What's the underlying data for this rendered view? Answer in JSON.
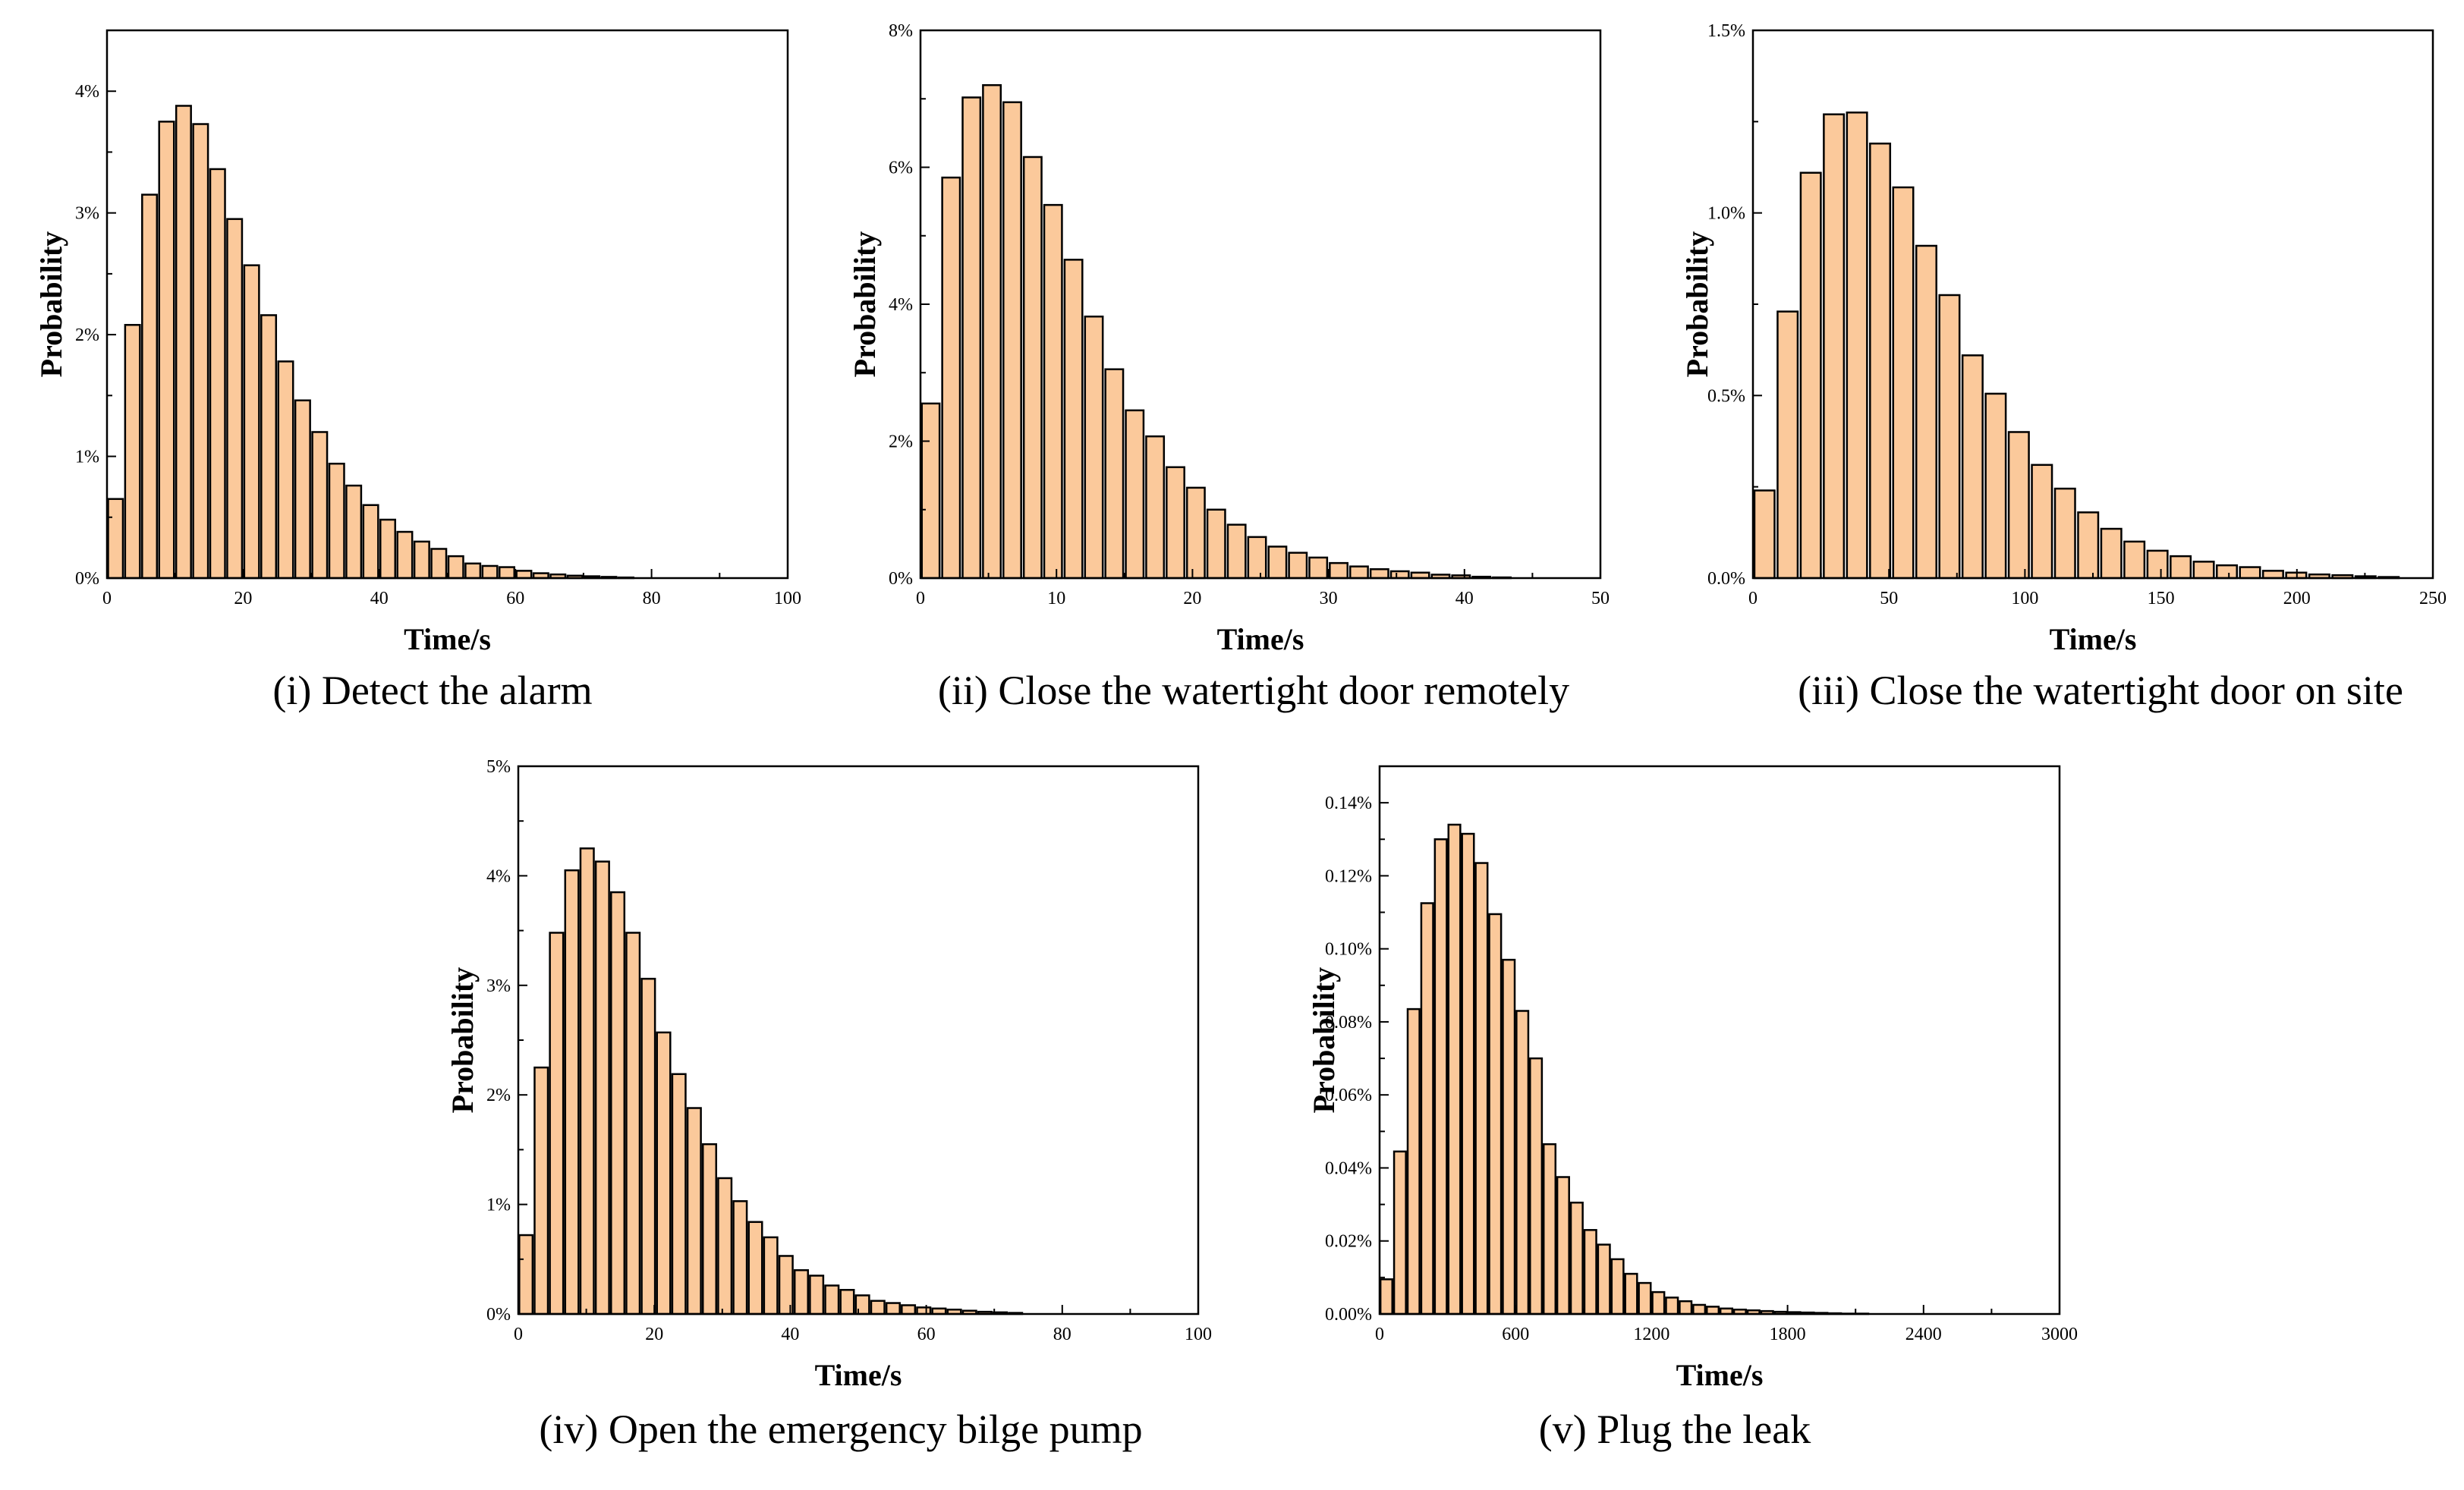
{
  "theme": {
    "bar_fill": "#fbc99b",
    "bar_stroke": "#000000"
  },
  "chart_data": [
    {
      "type": "bar",
      "caption": "(i) Detect the alarm",
      "xlabel": "Time/s",
      "ylabel": "Probability",
      "xlim": [
        0,
        100
      ],
      "ylim": [
        0,
        4.5
      ],
      "xticks": [
        0,
        20,
        40,
        60,
        80,
        100
      ],
      "xtick_labels": [
        "0",
        "20",
        "40",
        "60",
        "80",
        "100"
      ],
      "yticks": [
        0,
        1,
        2,
        3,
        4
      ],
      "ytick_labels": [
        "0%",
        "1%",
        "2%",
        "3%",
        "4%"
      ],
      "bin_width": 2.5,
      "x": [
        0,
        2.5,
        5,
        7.5,
        10,
        12.5,
        15,
        17.5,
        20,
        22.5,
        25,
        27.5,
        30,
        32.5,
        35,
        37.5,
        40,
        42.5,
        45,
        47.5,
        50,
        52.5,
        55,
        57.5,
        60,
        62.5,
        65,
        67.5,
        70,
        72.5,
        75
      ],
      "values": [
        0.65,
        2.08,
        3.15,
        3.75,
        3.88,
        3.73,
        3.36,
        2.95,
        2.57,
        2.16,
        1.78,
        1.46,
        1.2,
        0.94,
        0.76,
        0.6,
        0.48,
        0.38,
        0.3,
        0.24,
        0.18,
        0.12,
        0.1,
        0.09,
        0.06,
        0.04,
        0.03,
        0.02,
        0.015,
        0.01,
        0.005
      ]
    },
    {
      "type": "bar",
      "caption": "(ii) Close the watertight door remotely",
      "xlabel": "Time/s",
      "ylabel": "Probability",
      "xlim": [
        0,
        50
      ],
      "ylim": [
        0,
        8
      ],
      "xticks": [
        0,
        10,
        20,
        30,
        40,
        50
      ],
      "xtick_labels": [
        "0",
        "10",
        "20",
        "30",
        "40",
        "50"
      ],
      "yticks": [
        0,
        2,
        4,
        6,
        8
      ],
      "ytick_labels": [
        "0%",
        "2%",
        "4%",
        "6%",
        "8%"
      ],
      "bin_width": 1.5,
      "x": [
        0,
        1.5,
        3,
        4.5,
        6,
        7.5,
        9,
        10.5,
        12,
        13.5,
        15,
        16.5,
        18,
        19.5,
        21,
        22.5,
        24,
        25.5,
        27,
        28.5,
        30,
        31.5,
        33,
        34.5,
        36,
        37.5,
        39,
        40.5,
        42
      ],
      "values": [
        2.55,
        5.85,
        7.02,
        7.2,
        6.95,
        6.15,
        5.45,
        4.65,
        3.82,
        3.05,
        2.45,
        2.07,
        1.62,
        1.32,
        1.0,
        0.78,
        0.6,
        0.46,
        0.37,
        0.3,
        0.22,
        0.17,
        0.13,
        0.1,
        0.08,
        0.05,
        0.04,
        0.02,
        0.01
      ]
    },
    {
      "type": "bar",
      "caption": "(iii) Close the watertight door on site",
      "xlabel": "Time/s",
      "ylabel": "Probability",
      "xlim": [
        0,
        250
      ],
      "ylim": [
        0,
        1.5
      ],
      "xticks": [
        0,
        50,
        100,
        150,
        200,
        250
      ],
      "xtick_labels": [
        "0",
        "50",
        "100",
        "150",
        "200",
        "250"
      ],
      "yticks": [
        0,
        0.5,
        1.0,
        1.5
      ],
      "ytick_labels": [
        "0.0%",
        "0.5%",
        "1.0%",
        "1.5%"
      ],
      "bin_width": 8.5,
      "x": [
        0,
        8.5,
        17,
        25.5,
        34,
        42.5,
        51,
        59.5,
        68,
        76.5,
        85,
        93.5,
        102,
        110.5,
        119,
        127.5,
        136,
        144.5,
        153,
        161.5,
        170,
        178.5,
        187,
        195.5,
        204,
        212.5,
        221,
        229.5
      ],
      "values": [
        0.24,
        0.73,
        1.11,
        1.27,
        1.275,
        1.19,
        1.07,
        0.91,
        0.775,
        0.61,
        0.505,
        0.4,
        0.31,
        0.245,
        0.18,
        0.135,
        0.1,
        0.075,
        0.06,
        0.045,
        0.035,
        0.03,
        0.02,
        0.015,
        0.01,
        0.008,
        0.005,
        0.003
      ]
    },
    {
      "type": "bar",
      "caption": "(iv) Open the emergency bilge pump",
      "xlabel": "Time/s",
      "ylabel": "Probability",
      "xlim": [
        0,
        100
      ],
      "ylim": [
        0,
        5
      ],
      "xticks": [
        0,
        20,
        40,
        60,
        80,
        100
      ],
      "xtick_labels": [
        "0",
        "20",
        "40",
        "60",
        "80",
        "100"
      ],
      "yticks": [
        0,
        1,
        2,
        3,
        4,
        5
      ],
      "ytick_labels": [
        "0%",
        "1%",
        "2%",
        "3%",
        "4%",
        "5%"
      ],
      "bin_width": 2.25,
      "x": [
        0,
        2.25,
        4.5,
        6.75,
        9,
        11.25,
        13.5,
        15.75,
        18,
        20.25,
        22.5,
        24.75,
        27,
        29.25,
        31.5,
        33.75,
        36,
        38.25,
        40.5,
        42.75,
        45,
        47.25,
        49.5,
        51.75,
        54,
        56.25,
        58.5,
        60.75,
        63,
        65.25,
        67.5,
        69.75,
        72
      ],
      "values": [
        0.72,
        2.25,
        3.48,
        4.05,
        4.25,
        4.13,
        3.85,
        3.48,
        3.06,
        2.57,
        2.19,
        1.88,
        1.55,
        1.24,
        1.03,
        0.84,
        0.7,
        0.53,
        0.4,
        0.35,
        0.26,
        0.22,
        0.17,
        0.12,
        0.1,
        0.08,
        0.06,
        0.05,
        0.04,
        0.03,
        0.02,
        0.015,
        0.01
      ]
    },
    {
      "type": "bar",
      "caption": "(v) Plug the leak",
      "xlabel": "Time/s",
      "ylabel": "Probability",
      "xlim": [
        0,
        3000
      ],
      "ylim": [
        0,
        0.15
      ],
      "xticks": [
        0,
        600,
        1200,
        1800,
        2400,
        3000
      ],
      "xtick_labels": [
        "0",
        "600",
        "1200",
        "1800",
        "2400",
        "3000"
      ],
      "yticks": [
        0,
        0.02,
        0.04,
        0.06,
        0.08,
        0.1,
        0.12,
        0.14
      ],
      "ytick_labels": [
        "0.00%",
        "0.02%",
        "0.04%",
        "0.06%",
        "0.08%",
        "0.10%",
        "0.12%",
        "0.14%"
      ],
      "bin_width": 60,
      "x": [
        0,
        60,
        120,
        180,
        240,
        300,
        360,
        420,
        480,
        540,
        600,
        660,
        720,
        780,
        840,
        900,
        960,
        1020,
        1080,
        1140,
        1200,
        1260,
        1320,
        1380,
        1440,
        1500,
        1560,
        1620,
        1680,
        1740,
        1800,
        1860,
        1920,
        1980,
        2040,
        2100
      ],
      "values": [
        0.0095,
        0.0445,
        0.0835,
        0.1125,
        0.13,
        0.134,
        0.1315,
        0.1235,
        0.1095,
        0.097,
        0.083,
        0.07,
        0.0465,
        0.0375,
        0.0305,
        0.023,
        0.019,
        0.015,
        0.011,
        0.0085,
        0.006,
        0.0045,
        0.0035,
        0.0025,
        0.002,
        0.0015,
        0.0012,
        0.001,
        0.0008,
        0.0006,
        0.0005,
        0.0004,
        0.0003,
        0.0002,
        0.0001,
        0.0001
      ]
    }
  ]
}
